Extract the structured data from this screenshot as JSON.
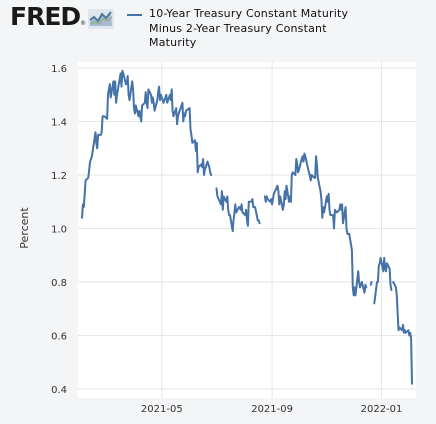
{
  "branding": {
    "logo_text": "FRED",
    "logo_mark": "®",
    "logo_icon": "line-chart-icon"
  },
  "legend": {
    "label": "10-Year Treasury Constant Maturity Minus 2-Year Treasury Constant Maturity",
    "color": "#4572a7"
  },
  "chart_data": {
    "type": "line",
    "title": "",
    "xlabel": "",
    "ylabel": "Percent",
    "ylim": [
      0.4,
      1.6
    ],
    "yticks": [
      "1.6",
      "1.4",
      "1.2",
      "1.0",
      "0.8",
      "0.6",
      "0.4"
    ],
    "xticks": [
      {
        "date": "2021-05-01",
        "label": "2021-05"
      },
      {
        "date": "2021-09-01",
        "label": "2021-09"
      },
      {
        "date": "2022-01-01",
        "label": "2022-01"
      }
    ],
    "xlim": [
      "2021-02-01",
      "2022-01-20"
    ],
    "grid": true,
    "legend_position": "top",
    "series": [
      {
        "name": "10-Year Treasury Constant Maturity Minus 2-Year Treasury Constant Maturity",
        "color": "#4572a7",
        "points": [
          [
            "2021-02-01",
            1.04
          ],
          [
            "2021-02-02",
            1.09
          ],
          [
            "2021-02-03",
            1.08
          ],
          [
            "2021-02-05",
            1.18
          ],
          [
            "2021-02-08",
            1.19
          ],
          [
            "2021-02-09",
            1.22
          ],
          [
            "2021-02-10",
            1.25
          ],
          [
            "2021-02-11",
            1.26
          ],
          [
            "2021-02-12",
            1.27
          ],
          [
            "2021-02-16",
            1.36
          ],
          [
            "2021-02-17",
            1.32
          ],
          [
            "2021-02-18",
            1.3
          ],
          [
            "2021-02-19",
            1.35
          ],
          [
            "2021-02-22",
            1.35
          ],
          [
            "2021-02-23",
            1.36
          ],
          [
            "2021-02-24",
            1.42
          ],
          [
            "2021-02-25",
            1.42
          ],
          [
            "2021-02-26",
            1.42
          ],
          [
            "2021-03-01",
            1.41
          ],
          [
            "2021-03-02",
            1.5
          ],
          [
            "2021-03-03",
            1.52
          ],
          [
            "2021-03-04",
            1.54
          ],
          [
            "2021-03-05",
            1.49
          ],
          [
            "2021-03-08",
            1.55
          ],
          [
            "2021-03-09",
            1.5
          ],
          [
            "2021-03-10",
            1.55
          ],
          [
            "2021-03-11",
            1.47
          ],
          [
            "2021-03-12",
            1.5
          ],
          [
            "2021-03-15",
            1.56
          ],
          [
            "2021-03-16",
            1.58
          ],
          [
            "2021-03-17",
            1.53
          ],
          [
            "2021-03-18",
            1.59
          ],
          [
            "2021-03-19",
            1.58
          ],
          [
            "2021-03-22",
            1.54
          ],
          [
            "2021-03-23",
            1.54
          ],
          [
            "2021-03-24",
            1.57
          ],
          [
            "2021-03-25",
            1.5
          ],
          [
            "2021-03-26",
            1.48
          ],
          [
            "2021-03-29",
            1.55
          ],
          [
            "2021-03-30",
            1.52
          ],
          [
            "2021-03-31",
            1.45
          ],
          [
            "2021-04-01",
            1.43
          ],
          [
            "2021-04-02",
            1.46
          ],
          [
            "2021-04-05",
            1.42
          ],
          [
            "2021-04-06",
            1.44
          ],
          [
            "2021-04-07",
            1.42
          ],
          [
            "2021-04-08",
            1.4
          ],
          [
            "2021-04-09",
            1.46
          ],
          [
            "2021-04-12",
            1.47
          ],
          [
            "2021-04-13",
            1.51
          ],
          [
            "2021-04-14",
            1.47
          ],
          [
            "2021-04-15",
            1.45
          ],
          [
            "2021-04-16",
            1.52
          ],
          [
            "2021-04-19",
            1.5
          ],
          [
            "2021-04-20",
            1.47
          ],
          [
            "2021-04-21",
            1.49
          ],
          [
            "2021-04-22",
            1.47
          ],
          [
            "2021-04-23",
            1.44
          ],
          [
            "2021-04-26",
            1.48
          ],
          [
            "2021-04-27",
            1.51
          ],
          [
            "2021-04-28",
            1.53
          ],
          [
            "2021-04-29",
            1.48
          ],
          [
            "2021-04-30",
            1.5
          ],
          [
            "2021-05-03",
            1.47
          ],
          [
            "2021-05-04",
            1.48
          ],
          [
            "2021-05-05",
            1.49
          ],
          [
            "2021-05-06",
            1.5
          ],
          [
            "2021-05-07",
            1.47
          ],
          [
            "2021-05-10",
            1.5
          ],
          [
            "2021-05-11",
            1.48
          ],
          [
            "2021-05-12",
            1.52
          ],
          [
            "2021-05-13",
            1.44
          ],
          [
            "2021-05-14",
            1.42
          ],
          [
            "2021-05-17",
            1.45
          ],
          [
            "2021-05-18",
            1.39
          ],
          [
            "2021-05-19",
            1.42
          ],
          [
            "2021-05-20",
            1.43
          ],
          [
            "2021-05-21",
            1.44
          ],
          [
            "2021-05-24",
            1.47
          ],
          [
            "2021-05-25",
            1.4
          ],
          [
            "2021-05-26",
            1.43
          ],
          [
            "2021-05-27",
            1.42
          ],
          [
            "2021-05-28",
            1.44
          ],
          [
            "2021-06-01",
            1.45
          ],
          [
            "2021-06-02",
            1.37
          ],
          [
            "2021-06-03",
            1.35
          ],
          [
            "2021-06-04",
            1.32
          ],
          [
            "2021-06-07",
            1.33
          ],
          [
            "2021-06-08",
            1.29
          ],
          [
            "2021-06-09",
            1.32
          ],
          [
            "2021-06-10",
            1.21
          ],
          [
            "2021-06-11",
            1.23
          ],
          [
            "2021-06-14",
            1.24
          ],
          [
            "2021-06-15",
            1.23
          ],
          [
            "2021-06-16",
            1.26
          ],
          [
            "2021-06-17",
            1.2
          ],
          [
            "2021-06-18",
            1.22
          ],
          [
            "2021-06-21",
            1.25
          ],
          [
            "2021-06-22",
            1.24
          ],
          [
            "2021-06-23",
            1.23
          ],
          [
            "2021-06-24",
            1.21
          ],
          [
            "2021-06-25",
            1.2
          ],
          [
            "2021-06-30",
            null
          ],
          [
            "2021-07-01",
            1.15
          ],
          [
            "2021-07-02",
            1.12
          ],
          [
            "2021-07-06",
            1.09
          ],
          [
            "2021-07-07",
            1.14
          ],
          [
            "2021-07-08",
            1.07
          ],
          [
            "2021-07-09",
            1.12
          ],
          [
            "2021-07-12",
            1.1
          ],
          [
            "2021-07-13",
            1.12
          ],
          [
            "2021-07-14",
            1.07
          ],
          [
            "2021-07-15",
            1.05
          ],
          [
            "2021-07-16",
            1.05
          ],
          [
            "2021-07-19",
            0.99
          ],
          [
            "2021-07-20",
            1.03
          ],
          [
            "2021-07-21",
            1.06
          ],
          [
            "2021-07-22",
            1.09
          ],
          [
            "2021-07-23",
            1.06
          ],
          [
            "2021-07-26",
            1.08
          ],
          [
            "2021-07-27",
            1.08
          ],
          [
            "2021-07-28",
            1.07
          ],
          [
            "2021-07-29",
            1.09
          ],
          [
            "2021-07-30",
            1.06
          ],
          [
            "2021-08-02",
            1.05
          ],
          [
            "2021-08-03",
            1.07
          ],
          [
            "2021-08-04",
            1.03
          ],
          [
            "2021-08-05",
            1.01
          ],
          [
            "2021-08-06",
            1.1
          ],
          [
            "2021-08-09",
            1.1
          ],
          [
            "2021-08-10",
            1.11
          ],
          [
            "2021-08-11",
            1.08
          ],
          [
            "2021-08-12",
            1.08
          ],
          [
            "2021-08-13",
            1.08
          ],
          [
            "2021-08-16",
            1.03
          ],
          [
            "2021-08-17",
            1.03
          ],
          [
            "2021-08-18",
            1.02
          ],
          [
            "2021-08-20",
            null
          ],
          [
            "2021-08-24",
            1.12
          ],
          [
            "2021-08-25",
            1.1
          ],
          [
            "2021-08-26",
            1.12
          ],
          [
            "2021-08-27",
            1.11
          ],
          [
            "2021-08-30",
            1.1
          ],
          [
            "2021-08-31",
            1.11
          ],
          [
            "2021-09-01",
            1.09
          ],
          [
            "2021-09-02",
            1.11
          ],
          [
            "2021-09-03",
            1.13
          ],
          [
            "2021-09-07",
            1.16
          ],
          [
            "2021-09-08",
            1.14
          ],
          [
            "2021-09-09",
            1.09
          ],
          [
            "2021-09-10",
            1.12
          ],
          [
            "2021-09-13",
            1.07
          ],
          [
            "2021-09-14",
            1.09
          ],
          [
            "2021-09-15",
            1.14
          ],
          [
            "2021-09-16",
            1.11
          ],
          [
            "2021-09-17",
            1.16
          ],
          [
            "2021-09-20",
            1.1
          ],
          [
            "2021-09-21",
            1.12
          ],
          [
            "2021-09-22",
            1.1
          ],
          [
            "2021-09-23",
            1.2
          ],
          [
            "2021-09-24",
            1.21
          ],
          [
            "2021-09-27",
            1.2
          ],
          [
            "2021-09-28",
            1.26
          ],
          [
            "2021-09-29",
            1.24
          ],
          [
            "2021-09-30",
            1.21
          ],
          [
            "2021-10-01",
            1.22
          ],
          [
            "2021-10-04",
            1.26
          ],
          [
            "2021-10-05",
            1.27
          ],
          [
            "2021-10-06",
            1.25
          ],
          [
            "2021-10-07",
            1.28
          ],
          [
            "2021-10-08",
            1.27
          ],
          [
            "2021-10-12",
            1.21
          ],
          [
            "2021-10-13",
            1.2
          ],
          [
            "2021-10-14",
            1.18
          ],
          [
            "2021-10-15",
            1.2
          ],
          [
            "2021-10-18",
            1.19
          ],
          [
            "2021-10-19",
            1.19
          ],
          [
            "2021-10-20",
            1.27
          ],
          [
            "2021-10-21",
            1.24
          ],
          [
            "2021-10-22",
            1.19
          ],
          [
            "2021-10-25",
            1.14
          ],
          [
            "2021-10-26",
            1.11
          ],
          [
            "2021-10-27",
            1.04
          ],
          [
            "2021-10-28",
            1.08
          ],
          [
            "2021-10-29",
            1.06
          ],
          [
            "2021-11-01",
            1.12
          ],
          [
            "2021-11-02",
            1.1
          ],
          [
            "2021-11-03",
            1.13
          ],
          [
            "2021-11-04",
            1.07
          ],
          [
            "2021-11-05",
            1.05
          ],
          [
            "2021-11-08",
            1.05
          ],
          [
            "2021-11-09",
            1.0
          ],
          [
            "2021-11-10",
            1.07
          ],
          [
            "2021-11-12",
            1.06
          ],
          [
            "2021-11-15",
            1.07
          ],
          [
            "2021-11-16",
            1.09
          ],
          [
            "2021-11-17",
            1.07
          ],
          [
            "2021-11-18",
            1.09
          ],
          [
            "2021-11-19",
            1.02
          ],
          [
            "2021-11-22",
            1.08
          ],
          [
            "2021-11-23",
            1.0
          ],
          [
            "2021-11-24",
            0.98
          ],
          [
            "2021-11-26",
            0.98
          ],
          [
            "2021-11-29",
            0.92
          ],
          [
            "2021-11-30",
            0.78
          ],
          [
            "2021-12-01",
            0.75
          ],
          [
            "2021-12-02",
            0.78
          ],
          [
            "2021-12-03",
            0.75
          ],
          [
            "2021-12-06",
            0.84
          ],
          [
            "2021-12-07",
            0.8
          ],
          [
            "2021-12-08",
            0.78
          ],
          [
            "2021-12-09",
            0.79
          ],
          [
            "2021-12-10",
            0.8
          ],
          [
            "2021-12-13",
            0.76
          ],
          [
            "2021-12-14",
            0.79
          ],
          [
            "2021-12-15",
            0.78
          ],
          [
            "2021-12-16",
            null
          ],
          [
            "2021-12-20",
            0.79
          ],
          [
            "2021-12-21",
            0.8
          ],
          [
            "2021-12-22",
            null
          ],
          [
            "2021-12-24",
            0.72
          ],
          [
            "2021-12-27",
            0.8
          ],
          [
            "2021-12-28",
            0.8
          ],
          [
            "2021-12-29",
            0.86
          ],
          [
            "2021-12-30",
            0.87
          ],
          [
            "2021-12-31",
            0.89
          ],
          [
            "2022-01-03",
            0.84
          ],
          [
            "2022-01-04",
            0.89
          ],
          [
            "2022-01-05",
            0.85
          ],
          [
            "2022-01-06",
            0.84
          ],
          [
            "2022-01-07",
            0.87
          ],
          [
            "2022-01-10",
            0.85
          ],
          [
            "2022-01-11",
            0.79
          ],
          [
            "2022-01-12",
            0.77
          ],
          [
            "2022-01-13",
            null
          ],
          [
            "2022-01-14",
            0.8
          ],
          [
            "2022-01-17",
            0.78
          ],
          [
            "2022-01-18",
            0.75
          ],
          [
            "2022-01-19",
            0.68
          ],
          [
            "2022-01-20",
            0.62
          ],
          [
            "2022-01-21",
            0.63
          ],
          [
            "2022-01-24",
            0.62
          ],
          [
            "2022-01-25",
            0.64
          ],
          [
            "2022-01-26",
            0.61
          ],
          [
            "2022-01-27",
            0.62
          ],
          [
            "2022-01-28",
            0.61
          ],
          [
            "2022-01-31",
            0.62
          ],
          [
            "2022-02-01",
            0.6
          ],
          [
            "2022-02-02",
            0.61
          ],
          [
            "2022-02-03",
            0.59
          ],
          [
            "2022-02-04",
            0.42
          ]
        ]
      }
    ]
  }
}
